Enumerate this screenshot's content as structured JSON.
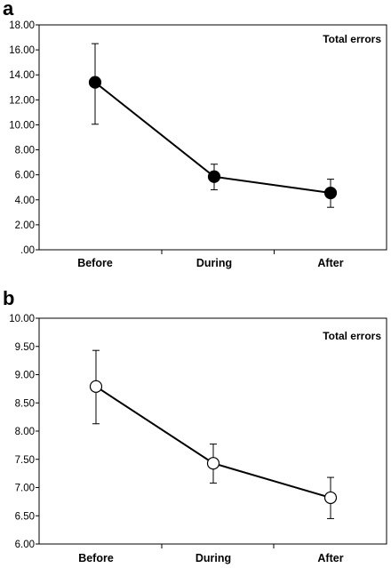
{
  "chart_data": [
    {
      "type": "line",
      "panel_label": "a",
      "annotation": "Total errors",
      "categories": [
        "Before",
        "During",
        "After"
      ],
      "series": [
        {
          "values": [
            13.4,
            5.85,
            4.55
          ],
          "error_low": [
            10.05,
            4.8,
            3.4
          ],
          "error_high": [
            16.5,
            6.85,
            5.65
          ],
          "marker": "filled-circle"
        }
      ],
      "ylim": [
        0,
        18
      ],
      "yticks": [
        0,
        2,
        4,
        6,
        8,
        10,
        12,
        14,
        16,
        18
      ],
      "ytick_labels": [
        ".00",
        "2.00",
        "4.00",
        "6.00",
        "8.00",
        "10.00",
        "12.00",
        "14.00",
        "16.00",
        "18.00"
      ],
      "grid": false,
      "xlabel": "",
      "ylabel": ""
    },
    {
      "type": "line",
      "panel_label": "b",
      "annotation": "Total errors",
      "categories": [
        "Before",
        "During",
        "After"
      ],
      "series": [
        {
          "values": [
            8.79,
            7.43,
            6.82
          ],
          "error_low": [
            8.13,
            7.08,
            6.45
          ],
          "error_high": [
            9.43,
            7.77,
            7.18
          ],
          "marker": "open-circle"
        }
      ],
      "ylim": [
        6,
        10
      ],
      "yticks": [
        6,
        6.5,
        7,
        7.5,
        8,
        8.5,
        9,
        9.5,
        10
      ],
      "ytick_labels": [
        "6.00",
        "6.50",
        "7.00",
        "7.50",
        "8.00",
        "8.50",
        "9.00",
        "9.50",
        "10.00"
      ],
      "grid": false,
      "xlabel": "",
      "ylabel": ""
    }
  ]
}
